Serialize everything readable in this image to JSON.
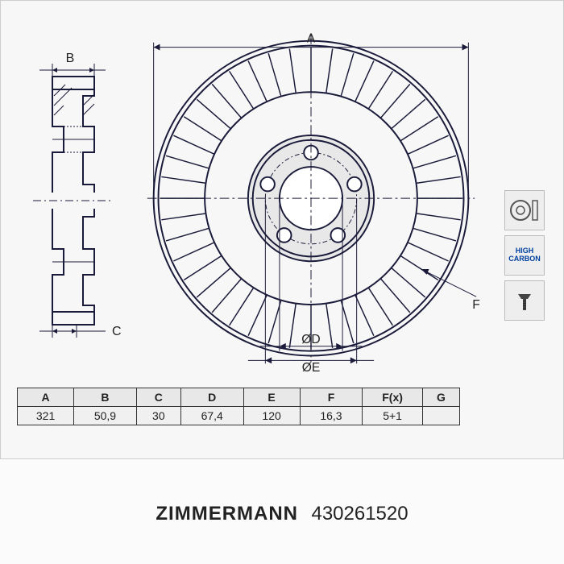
{
  "brand": "ZIMMERMANN",
  "part_number": "430261520",
  "table": {
    "headers": [
      "A",
      "B",
      "C",
      "D",
      "E",
      "F",
      "F(x)",
      "G"
    ],
    "values": [
      "321",
      "50,9",
      "30",
      "67,4",
      "120",
      "16,3",
      "5+1",
      ""
    ]
  },
  "dimensions": {
    "A": "A",
    "B": "B",
    "C": "C",
    "D_label": "ØD",
    "E_label": "ØE",
    "F": "F"
  },
  "badges": {
    "high_carbon": "HIGH CARBON"
  },
  "colors": {
    "stroke": "#1a1a3a",
    "fill_light": "#f7f7f7",
    "hub_fill": "#e8e8e8",
    "badge_blue": "#0040a0"
  },
  "disc": {
    "outer_radius": 200,
    "rim_inner_radius": 135,
    "hub_radius": 80,
    "bore_radius": 40,
    "bolt_circle_radius": 58,
    "bolt_count": 5,
    "bolt_hole_radius": 9,
    "vane_count": 44
  }
}
